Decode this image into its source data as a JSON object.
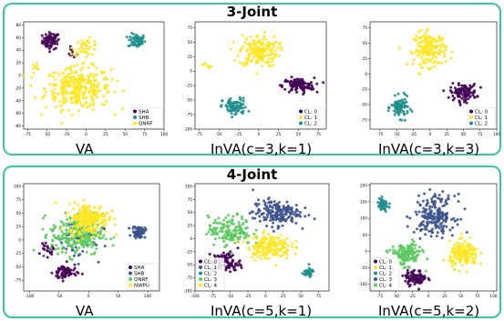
{
  "chart_data": [
    {
      "type": "scatter",
      "group": "3-Joint",
      "caption": "VA",
      "xlim": [
        -80,
        100
      ],
      "ylim": [
        -85,
        85
      ],
      "xticks": [
        -75,
        -50,
        -25,
        0,
        25,
        50,
        75,
        100
      ],
      "yticks": [
        -80,
        -60,
        -40,
        -20,
        0,
        20,
        40,
        60,
        80
      ],
      "legend": [
        "SHA",
        "SHB",
        "QNRF"
      ],
      "legend_pos": "lower-right",
      "series": [
        {
          "name": "SHA",
          "color": "#440154",
          "clusters": [
            [
              -45,
              55,
              10,
              12,
              70
            ],
            [
              -18,
              35,
              6,
              8,
              10
            ]
          ]
        },
        {
          "name": "SHB",
          "color": "#21908d",
          "clusters": [
            [
              65,
              55,
              10,
              10,
              70
            ]
          ]
        },
        {
          "name": "QNRF",
          "color": "#fde725",
          "clusters": [
            [
              -10,
              -20,
              38,
              30,
              330
            ],
            [
              0,
              45,
              15,
              12,
              40
            ],
            [
              -65,
              15,
              6,
              5,
              8
            ]
          ]
        }
      ]
    },
    {
      "type": "scatter",
      "group": "3-Joint",
      "caption": "InVA(c=3,k=1)",
      "xlim": [
        -80,
        85
      ],
      "ylim": [
        -100,
        85
      ],
      "xticks": [
        -75,
        -50,
        -25,
        0,
        25,
        50,
        75
      ],
      "yticks": [
        -100,
        -75,
        -50,
        -25,
        0,
        25,
        50,
        75
      ],
      "legend": [
        "CL: 0",
        "CL: 1",
        "CL: 2"
      ],
      "legend_pos": "lower-right",
      "series": [
        {
          "name": "CL: 0",
          "color": "#440154",
          "clusters": [
            [
              50,
              -25,
              18,
              12,
              110
            ]
          ]
        },
        {
          "name": "CL: 1",
          "color": "#fde725",
          "clusters": [
            [
              0,
              35,
              22,
              25,
              180
            ],
            [
              -65,
              10,
              5,
              5,
              8
            ]
          ]
        },
        {
          "name": "CL: 2",
          "color": "#21908d",
          "clusters": [
            [
              -30,
              -62,
              14,
              14,
              90
            ]
          ]
        }
      ]
    },
    {
      "type": "scatter",
      "group": "3-Joint",
      "caption": "InVA(c=3,k=3)",
      "xlim": [
        -90,
        100
      ],
      "ylim": [
        -90,
        85
      ],
      "xticks": [
        -75,
        -50,
        -25,
        0,
        25,
        50,
        75,
        100
      ],
      "yticks": [
        -75,
        -50,
        -25,
        0,
        25,
        50,
        75
      ],
      "legend": [
        "CL: 0",
        "CL: 1",
        "CL: 2"
      ],
      "legend_pos": "lower-right",
      "series": [
        {
          "name": "CL: 0",
          "color": "#440154",
          "clusters": [
            [
              50,
              -30,
              18,
              12,
              110
            ]
          ]
        },
        {
          "name": "CL: 1",
          "color": "#fde725",
          "clusters": [
            [
              0,
              40,
              22,
              25,
              180
            ]
          ]
        },
        {
          "name": "CL: 2",
          "color": "#21908d",
          "clusters": [
            [
              -45,
              -55,
              12,
              15,
              90
            ]
          ]
        }
      ]
    },
    {
      "type": "scatter",
      "group": "4-Joint",
      "caption": "VA",
      "xlim": [
        -110,
        120
      ],
      "ylim": [
        -95,
        105
      ],
      "xticks": [
        -100,
        -50,
        0,
        50,
        100
      ],
      "yticks": [
        -75,
        -50,
        -25,
        0,
        25,
        50,
        75,
        100
      ],
      "legend": [
        "SHA",
        "SHB",
        "QNRF",
        "NWPU"
      ],
      "legend_pos": "lower-right",
      "series": [
        {
          "name": "SHA",
          "color": "#440154",
          "clusters": [
            [
              -40,
              -60,
              18,
              14,
              70
            ],
            [
              -70,
              -20,
              10,
              10,
              20
            ]
          ]
        },
        {
          "name": "SHB",
          "color": "#3b528b",
          "clusters": [
            [
              85,
              15,
              10,
              10,
              60
            ],
            [
              -20,
              0,
              40,
              35,
              50
            ]
          ]
        },
        {
          "name": "QNRF",
          "color": "#5ec962",
          "clusters": [
            [
              -20,
              10,
              40,
              35,
              260
            ]
          ]
        },
        {
          "name": "NWPU",
          "color": "#fde725",
          "clusters": [
            [
              0,
              40,
              30,
              25,
              230
            ]
          ]
        }
      ]
    },
    {
      "type": "scatter",
      "group": "4-Joint",
      "caption": "InVA(c=5,k=1)",
      "xlim": [
        -100,
        90
      ],
      "ylim": [
        -100,
        105
      ],
      "xticks": [
        -100,
        -75,
        -50,
        -25,
        0,
        25,
        50,
        75
      ],
      "yticks": [
        -100,
        -75,
        -50,
        -25,
        0,
        25,
        50,
        75,
        100
      ],
      "legend": [
        "CL: 0",
        "CL: 1",
        "CL: 2",
        "CL: 3",
        "CL: 4"
      ],
      "legend_pos": "lower-left",
      "series": [
        {
          "name": "CL: 0",
          "color": "#440154",
          "clusters": [
            [
              -55,
              -45,
              18,
              18,
              90
            ]
          ]
        },
        {
          "name": "CL: 1",
          "color": "#3b528b",
          "clusters": [
            [
              15,
              50,
              30,
              22,
              180
            ]
          ]
        },
        {
          "name": "CL: 2",
          "color": "#21908d",
          "clusters": [
            [
              60,
              -65,
              8,
              8,
              35
            ]
          ]
        },
        {
          "name": "CL: 3",
          "color": "#5ec962",
          "clusters": [
            [
              -50,
              15,
              28,
              25,
              160
            ]
          ]
        },
        {
          "name": "CL: 4",
          "color": "#fde725",
          "clusters": [
            [
              5,
              -15,
              28,
              22,
              170
            ]
          ]
        }
      ]
    },
    {
      "type": "scatter",
      "group": "4-Joint",
      "caption": "InVA(c=5,k=2)",
      "xlim": [
        -90,
        105
      ],
      "ylim": [
        -120,
        205
      ],
      "xticks": [
        -75,
        -50,
        -25,
        0,
        25,
        50,
        75,
        100
      ],
      "yticks": [
        -100,
        -50,
        0,
        50,
        100,
        150,
        200
      ],
      "legend": [
        "CL: 0",
        "CL: 1",
        "CL: 2",
        "CL: 3",
        "CL: 4"
      ],
      "legend_pos": "lower-left",
      "series": [
        {
          "name": "CL: 0",
          "color": "#440154",
          "clusters": [
            [
              -20,
              -80,
              15,
              20,
              90
            ]
          ]
        },
        {
          "name": "CL: 1",
          "color": "#fde725",
          "clusters": [
            [
              55,
              -10,
              20,
              35,
              160
            ]
          ]
        },
        {
          "name": "CL: 2",
          "color": "#21908d",
          "clusters": [
            [
              -70,
              140,
              8,
              18,
              55
            ]
          ]
        },
        {
          "name": "CL: 3",
          "color": "#3b528b",
          "clusters": [
            [
              10,
              110,
              28,
              55,
              200
            ]
          ]
        },
        {
          "name": "CL: 4",
          "color": "#5ec962",
          "clusters": [
            [
              -35,
              -10,
              22,
              30,
              150
            ]
          ]
        }
      ]
    }
  ],
  "panels": [
    {
      "title": "3-Joint"
    },
    {
      "title": "4-Joint"
    }
  ]
}
